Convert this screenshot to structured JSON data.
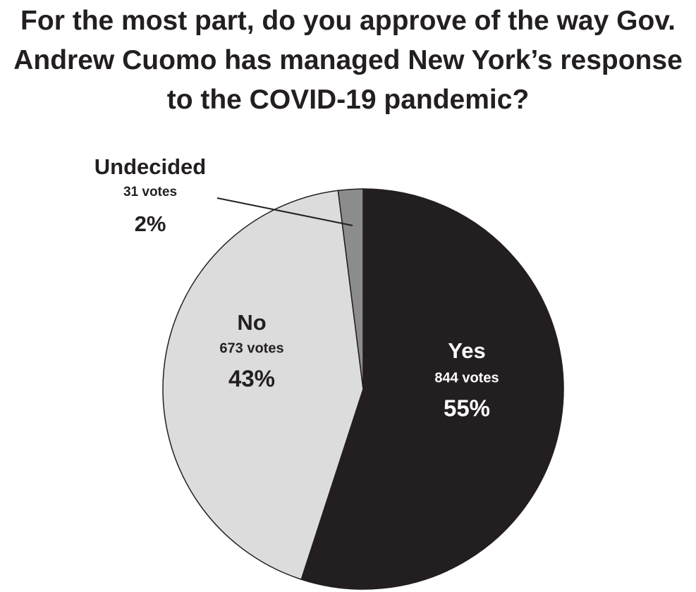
{
  "chart_data": {
    "type": "pie",
    "title": "For the most part, do you approve of the way Gov. Andrew Cuomo has managed New York’s response to the COVID-19 pandemic?",
    "categories": [
      "Yes",
      "No",
      "Undecided"
    ],
    "values": [
      55,
      43,
      2
    ],
    "value_labels": [
      "55%",
      "43%",
      "2%"
    ],
    "vote_labels": [
      "844 votes",
      "673 votes",
      "31 votes"
    ],
    "colors": [
      "#231f20",
      "#dcdcdc",
      "#8c8c8c"
    ],
    "start_angle": 0,
    "direction": "clockwise"
  }
}
